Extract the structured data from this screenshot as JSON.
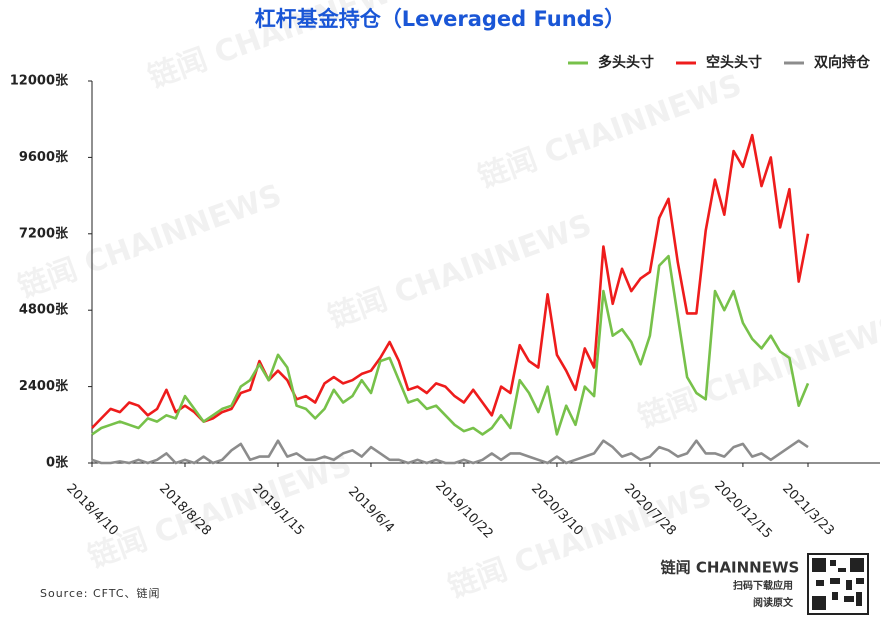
{
  "chart_data": {
    "type": "line",
    "title": "杠杆基金持仓（Leveraged Funds）",
    "categories": [
      "2018/4/10",
      null,
      null,
      null,
      null,
      null,
      null,
      null,
      null,
      null,
      "2018/8/28",
      null,
      null,
      null,
      null,
      null,
      null,
      null,
      null,
      null,
      "2019/1/15",
      null,
      null,
      null,
      null,
      null,
      null,
      null,
      null,
      null,
      "2019/6/4",
      null,
      null,
      null,
      null,
      null,
      null,
      null,
      null,
      null,
      "2019/10/22",
      null,
      null,
      null,
      null,
      null,
      null,
      null,
      null,
      null,
      "2020/3/10",
      null,
      null,
      null,
      null,
      null,
      null,
      null,
      null,
      null,
      "2020/7/28",
      null,
      null,
      null,
      null,
      null,
      null,
      null,
      null,
      null,
      "2020/12/15",
      null,
      null,
      null,
      null,
      null,
      null,
      "2021/3/23"
    ],
    "series": [
      {
        "name": "多头头寸",
        "color": "#77c14a",
        "values": [
          900,
          1100,
          1200,
          1300,
          1200,
          1100,
          1400,
          1300,
          1500,
          1400,
          2100,
          1700,
          1300,
          1500,
          1700,
          1800,
          2400,
          2600,
          3100,
          2600,
          3400,
          3000,
          1800,
          1700,
          1400,
          1700,
          2300,
          1900,
          2100,
          2600,
          2200,
          3200,
          3300,
          2600,
          1900,
          2000,
          1700,
          1800,
          1500,
          1200,
          1000,
          1100,
          900,
          1100,
          1500,
          1100,
          2600,
          2200,
          1600,
          2400,
          900,
          1800,
          1200,
          2400,
          2100,
          5400,
          4000,
          4200,
          3800,
          3100,
          4000,
          6200,
          6500,
          4600,
          2700,
          2200,
          2000,
          5400,
          4800,
          5400,
          4400,
          3900,
          3600,
          4000,
          3500,
          3300,
          1800,
          2500
        ]
      },
      {
        "name": "空头头寸",
        "color": "#ee1c1c",
        "values": [
          1100,
          1400,
          1700,
          1600,
          1900,
          1800,
          1500,
          1700,
          2300,
          1600,
          1800,
          1600,
          1300,
          1400,
          1600,
          1700,
          2200,
          2300,
          3200,
          2600,
          2900,
          2600,
          2000,
          2100,
          1900,
          2500,
          2700,
          2500,
          2600,
          2800,
          2900,
          3300,
          3800,
          3200,
          2300,
          2400,
          2200,
          2500,
          2400,
          2100,
          1900,
          2300,
          1900,
          1500,
          2400,
          2200,
          3700,
          3200,
          3000,
          5300,
          3400,
          2900,
          2300,
          3600,
          3000,
          6800,
          5000,
          6100,
          5400,
          5800,
          6000,
          7700,
          8300,
          6300,
          4700,
          4700,
          7300,
          8900,
          7800,
          9800,
          9300,
          10300,
          8700,
          9600,
          7400,
          8600,
          5700,
          7200
        ]
      },
      {
        "name": "双向持仓",
        "color": "#8c8c8c",
        "values": [
          100,
          0,
          0,
          50,
          0,
          100,
          0,
          100,
          300,
          0,
          100,
          0,
          200,
          0,
          100,
          400,
          600,
          100,
          200,
          200,
          700,
          200,
          300,
          100,
          100,
          200,
          100,
          300,
          400,
          200,
          500,
          300,
          100,
          100,
          0,
          100,
          0,
          100,
          0,
          0,
          100,
          0,
          100,
          300,
          100,
          300,
          300,
          200,
          100,
          0,
          200,
          0,
          100,
          200,
          300,
          700,
          500,
          200,
          300,
          100,
          200,
          500,
          400,
          200,
          300,
          700,
          300,
          300,
          200,
          500,
          600,
          200,
          300,
          100,
          300,
          500,
          700,
          500
        ]
      }
    ],
    "ylim": [
      0,
      12000
    ],
    "yticks": [
      {
        "value": 0,
        "label": "0张"
      },
      {
        "value": 2400,
        "label": "2400张"
      },
      {
        "value": 4800,
        "label": "4800张"
      },
      {
        "value": 7200,
        "label": "7200张"
      },
      {
        "value": 9600,
        "label": "9600张"
      },
      {
        "value": 12000,
        "label": "12000张"
      }
    ],
    "grid": false,
    "legend": "top-right",
    "source": "Source: CFTC、链闻",
    "watermark": "链闻 CHAINNEWS",
    "footer": {
      "brand": "链闻 CHAINNEWS",
      "line1": "扫码下载应用",
      "line2": "阅读原文"
    }
  }
}
